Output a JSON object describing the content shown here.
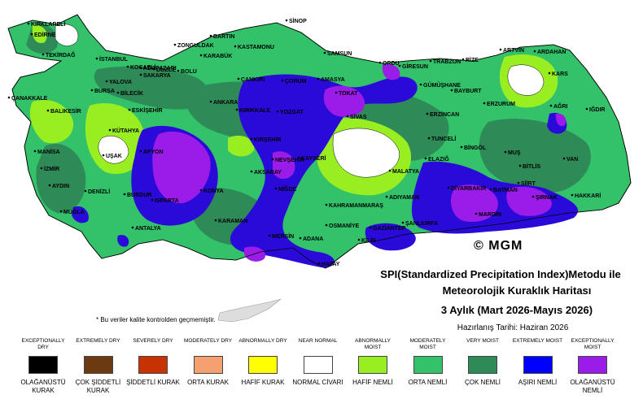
{
  "map": {
    "colors": {
      "sea": "#ffffff",
      "very_moist": "#2e8b57",
      "moderately_moist": "#33c26a",
      "abnormally_moist": "#99ee22",
      "near_normal": "#ffffff",
      "extremely_moist": "#2a0ad8",
      "exceptionally_moist": "#9b1be8",
      "border": "#000000"
    },
    "cities": [
      {
        "id": "kirklareli",
        "name": "KIRKLARELİ"
      },
      {
        "id": "edirne",
        "name": "EDİRNE"
      },
      {
        "id": "tekirdag",
        "name": "TEKİRDAĞ"
      },
      {
        "id": "istanbul",
        "name": "İSTANBUL"
      },
      {
        "id": "kocaeli",
        "name": "KOCAELİ"
      },
      {
        "id": "sakarya",
        "name": "SAKARYA"
      },
      {
        "id": "adapazari",
        "name": "ADAPAZARI"
      },
      {
        "id": "duzce",
        "name": "DÜZCE"
      },
      {
        "id": "bolu",
        "name": "BOLU"
      },
      {
        "id": "zonguldak",
        "name": "ZONGULDAK"
      },
      {
        "id": "bartin",
        "name": "BARTIN"
      },
      {
        "id": "karabuk",
        "name": "KARABÜK"
      },
      {
        "id": "kastamonu",
        "name": "KASTAMONU"
      },
      {
        "id": "sinop",
        "name": "SİNOP"
      },
      {
        "id": "samsun",
        "name": "SAMSUN"
      },
      {
        "id": "ordu",
        "name": "ORDU"
      },
      {
        "id": "giresun",
        "name": "GİRESUN"
      },
      {
        "id": "trabzon",
        "name": "TRABZON"
      },
      {
        "id": "rize",
        "name": "RİZE"
      },
      {
        "id": "artvin",
        "name": "ARTVİN"
      },
      {
        "id": "ardahan",
        "name": "ARDAHAN"
      },
      {
        "id": "kars",
        "name": "KARS"
      },
      {
        "id": "igdir",
        "name": "IĞDIR"
      },
      {
        "id": "agri",
        "name": "AĞRI"
      },
      {
        "id": "erzurum",
        "name": "ERZURUM"
      },
      {
        "id": "bayburt",
        "name": "BAYBURT"
      },
      {
        "id": "gumushane",
        "name": "GÜMÜŞHANE"
      },
      {
        "id": "erzincan",
        "name": "ERZİNCAN"
      },
      {
        "id": "tunceli",
        "name": "TUNCELİ"
      },
      {
        "id": "bingol",
        "name": "BİNGÖL"
      },
      {
        "id": "mus",
        "name": "MUŞ"
      },
      {
        "id": "bitlis",
        "name": "BİTLİS"
      },
      {
        "id": "van",
        "name": "VAN"
      },
      {
        "id": "hakkari",
        "name": "HAKKARİ"
      },
      {
        "id": "sirnak",
        "name": "ŞIRNAK"
      },
      {
        "id": "siirt",
        "name": "SİİRT"
      },
      {
        "id": "batman",
        "name": "BATMAN"
      },
      {
        "id": "mardin",
        "name": "MARDİN"
      },
      {
        "id": "diyarbakir",
        "name": "DİYARBAKIR"
      },
      {
        "id": "elazig",
        "name": "ELAZIĞ"
      },
      {
        "id": "malatya",
        "name": "MALATYA"
      },
      {
        "id": "adiyaman",
        "name": "ADIYAMAN"
      },
      {
        "id": "sanliurfa",
        "name": "ŞANLIURFA"
      },
      {
        "id": "gaziantep",
        "name": "GAZİANTEP"
      },
      {
        "id": "kilis",
        "name": "KİLİS"
      },
      {
        "id": "kahramanmaras",
        "name": "KAHRAMANMARAŞ"
      },
      {
        "id": "osmaniye",
        "name": "OSMANİYE"
      },
      {
        "id": "hatay",
        "name": "HATAY"
      },
      {
        "id": "adana",
        "name": "ADANA"
      },
      {
        "id": "mersin",
        "name": "MERSİN"
      },
      {
        "id": "nigde",
        "name": "NİĞDE"
      },
      {
        "id": "aksaray",
        "name": "AKSARAY"
      },
      {
        "id": "nevsehir",
        "name": "NEVŞEHİR"
      },
      {
        "id": "kayseri",
        "name": "KAYSERİ"
      },
      {
        "id": "sivas",
        "name": "SİVAS"
      },
      {
        "id": "tokat",
        "name": "TOKAT"
      },
      {
        "id": "amasya",
        "name": "AMASYA"
      },
      {
        "id": "corum",
        "name": "ÇORUM"
      },
      {
        "id": "yozgat",
        "name": "YOZGAT"
      },
      {
        "id": "kirsehir",
        "name": "KIRŞEHİR"
      },
      {
        "id": "kirikkale",
        "name": "KIRIKKALE"
      },
      {
        "id": "cankiri",
        "name": "ÇANKIRI"
      },
      {
        "id": "ankara",
        "name": "ANKARA"
      },
      {
        "id": "eskisehir",
        "name": "ESKİŞEHİR"
      },
      {
        "id": "bilecik",
        "name": "BİLECİK"
      },
      {
        "id": "bursa",
        "name": "BURSA"
      },
      {
        "id": "yalova",
        "name": "YALOVA"
      },
      {
        "id": "canakkale",
        "name": "ÇANAKKALE"
      },
      {
        "id": "balikesir",
        "name": "BALIKESİR"
      },
      {
        "id": "kutahya",
        "name": "KÜTAHYA"
      },
      {
        "id": "usak",
        "name": "UŞAK"
      },
      {
        "id": "afyon",
        "name": "AFYON"
      },
      {
        "id": "manisa",
        "name": "MANİSA"
      },
      {
        "id": "izmir",
        "name": "İZMİR"
      },
      {
        "id": "aydin",
        "name": "AYDIN"
      },
      {
        "id": "denizli",
        "name": "DENİZLİ"
      },
      {
        "id": "mugla",
        "name": "MUĞLA"
      },
      {
        "id": "burdur",
        "name": "BURDUR"
      },
      {
        "id": "isparta",
        "name": "ISPARTA"
      },
      {
        "id": "antalya",
        "name": "ANTALYA"
      },
      {
        "id": "konya",
        "name": "KONYA"
      },
      {
        "id": "karaman",
        "name": "KARAMAN"
      }
    ]
  },
  "logo": "© MGM",
  "title": {
    "line1": "SPI(Standardized Precipitation Index)Metodu ile",
    "line2": "Meteorolojik Kuraklık Haritası",
    "line3": "3 Aylık (Mart 2026-Mayıs 2026)",
    "line4": "Hazırlanış Tarihi: Haziran 2026"
  },
  "note": "* Bu veriler kalite kontrolden geçmemiştir.",
  "legend": [
    {
      "en": "EXCEPTIONALLY DRY",
      "tr": "OLAĞANÜSTÜ KURAK",
      "color": "#000000"
    },
    {
      "en": "EXTREMELY DRY",
      "tr": "ÇOK ŞİDDETLİ KURAK",
      "color": "#6b3a10"
    },
    {
      "en": "SEVERELY DRY",
      "tr": "ŞİDDETLİ KURAK",
      "color": "#c83200"
    },
    {
      "en": "MODERATELY DRY",
      "tr": "ORTA KURAK",
      "color": "#f4a070"
    },
    {
      "en": "ABNORMALLY DRY",
      "tr": "HAFİF KURAK",
      "color": "#ffff00"
    },
    {
      "en": "NEAR NORMAL",
      "tr": "NORMAL CİVARI",
      "color": "#ffffff"
    },
    {
      "en": "ABNORMALLY MOIST",
      "tr": "HAFİF NEMLİ",
      "color": "#99ee22"
    },
    {
      "en": "MODERATELY MOIST",
      "tr": "ORTA NEMLİ",
      "color": "#33c26a"
    },
    {
      "en": "VERY MOIST",
      "tr": "ÇOK NEMLİ",
      "color": "#2e8b57"
    },
    {
      "en": "EXTREMELY MOIST",
      "tr": "AŞIRI NEMLİ",
      "color": "#0000ff"
    },
    {
      "en": "EXCEPTIONALLY MOIST",
      "tr": "OLAĞANÜSTÜ NEMLİ",
      "color": "#9b1be8"
    }
  ]
}
